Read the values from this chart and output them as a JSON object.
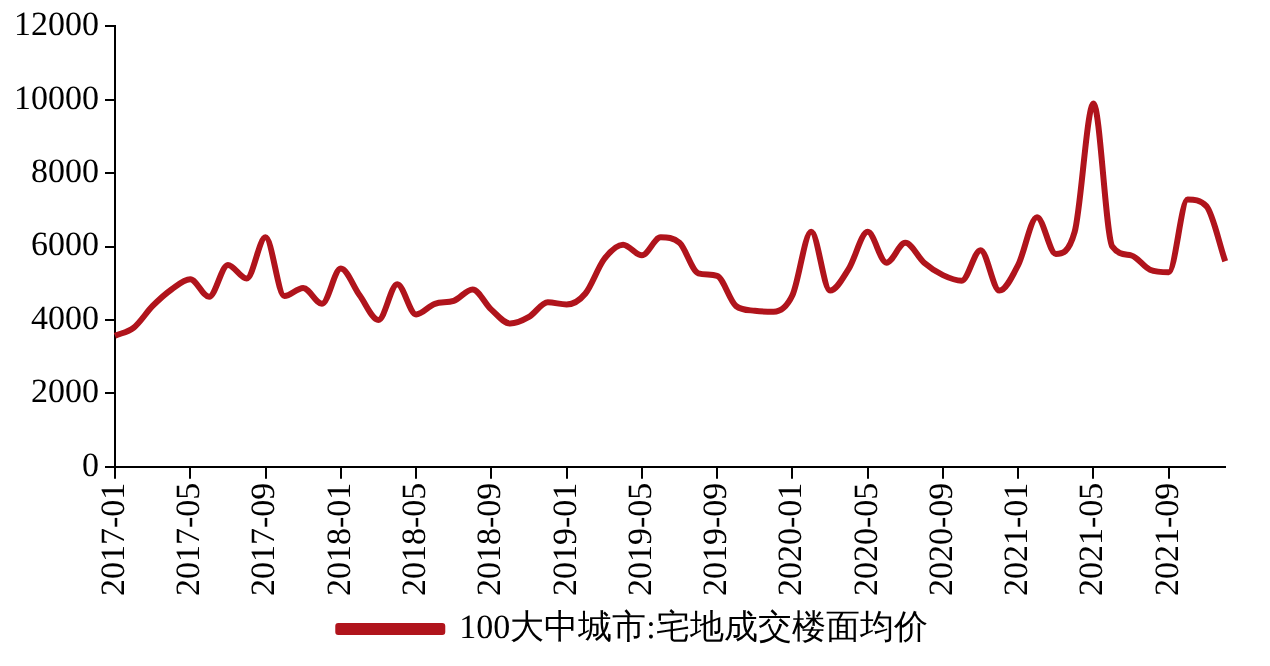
{
  "chart_data": {
    "type": "line",
    "categories": [
      "2017-01",
      null,
      null,
      null,
      "2017-05",
      null,
      null,
      null,
      "2017-09",
      null,
      null,
      null,
      "2018-01",
      null,
      null,
      null,
      "2018-05",
      null,
      null,
      null,
      "2018-09",
      null,
      null,
      null,
      "2019-01",
      null,
      null,
      null,
      "2019-05",
      null,
      null,
      null,
      "2019-09",
      null,
      null,
      null,
      "2020-01",
      null,
      null,
      null,
      "2020-05",
      null,
      null,
      null,
      "2020-09",
      null,
      null,
      null,
      "2021-01",
      null,
      null,
      null,
      "2021-05",
      null,
      null,
      null,
      "2021-09",
      null,
      null,
      null
    ],
    "series": [
      {
        "name": "100大中城市:宅地成交楼面均价",
        "color": "#b0141c",
        "values": [
          3570,
          3790,
          4380,
          4830,
          5110,
          4630,
          5500,
          5130,
          6250,
          4650,
          4870,
          4440,
          5400,
          4670,
          4000,
          4970,
          4150,
          4440,
          4520,
          4830,
          4280,
          3900,
          4080,
          4480,
          4420,
          4720,
          5660,
          6050,
          5760,
          6250,
          6100,
          5270,
          5200,
          4380,
          4250,
          4220,
          4670,
          6400,
          4800,
          5400,
          6400,
          5560,
          6100,
          5560,
          5220,
          5070,
          5900,
          4800,
          5500,
          6800,
          5800,
          6400,
          9900,
          6000,
          5760,
          5370,
          5300,
          7280,
          7100,
          5600
        ]
      }
    ],
    "ylim": [
      0,
      12000
    ],
    "yticks": [
      0,
      2000,
      4000,
      6000,
      8000,
      10000,
      12000
    ],
    "legend": "bottom",
    "marker": "none",
    "line_style": "solid"
  }
}
